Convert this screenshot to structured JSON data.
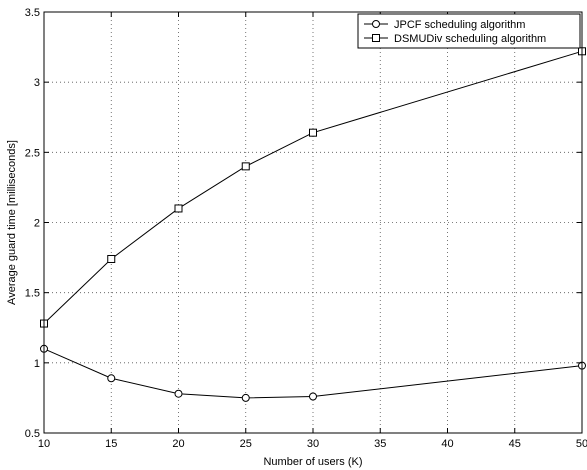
{
  "chart_data": {
    "type": "line",
    "title": "",
    "xlabel": "Number of users (K)",
    "ylabel": "Average guard time [milliseconds]",
    "xlim": [
      10,
      50
    ],
    "ylim": [
      0.5,
      3.5
    ],
    "xticks": [
      10,
      15,
      20,
      25,
      30,
      35,
      40,
      45,
      50
    ],
    "yticks": [
      0.5,
      1,
      1.5,
      2,
      2.5,
      3,
      3.5
    ],
    "xtick_labels": [
      "10",
      "15",
      "20",
      "25",
      "30",
      "35",
      "40",
      "45",
      "50"
    ],
    "ytick_labels": [
      "0.5",
      "1",
      "1.5",
      "2",
      "2.5",
      "3",
      "3.5"
    ],
    "grid": true,
    "legend_position": "top-right",
    "series": [
      {
        "name": "JPCF scheduling algorithm",
        "marker": "circle",
        "x": [
          10,
          15,
          20,
          25,
          30,
          50
        ],
        "values": [
          1.1,
          0.89,
          0.78,
          0.75,
          0.76,
          0.98
        ]
      },
      {
        "name": "DSMUDiv scheduling algorithm",
        "marker": "square",
        "x": [
          10,
          15,
          20,
          25,
          30,
          50
        ],
        "values": [
          1.28,
          1.74,
          2.1,
          2.4,
          2.64,
          3.22
        ]
      }
    ]
  }
}
